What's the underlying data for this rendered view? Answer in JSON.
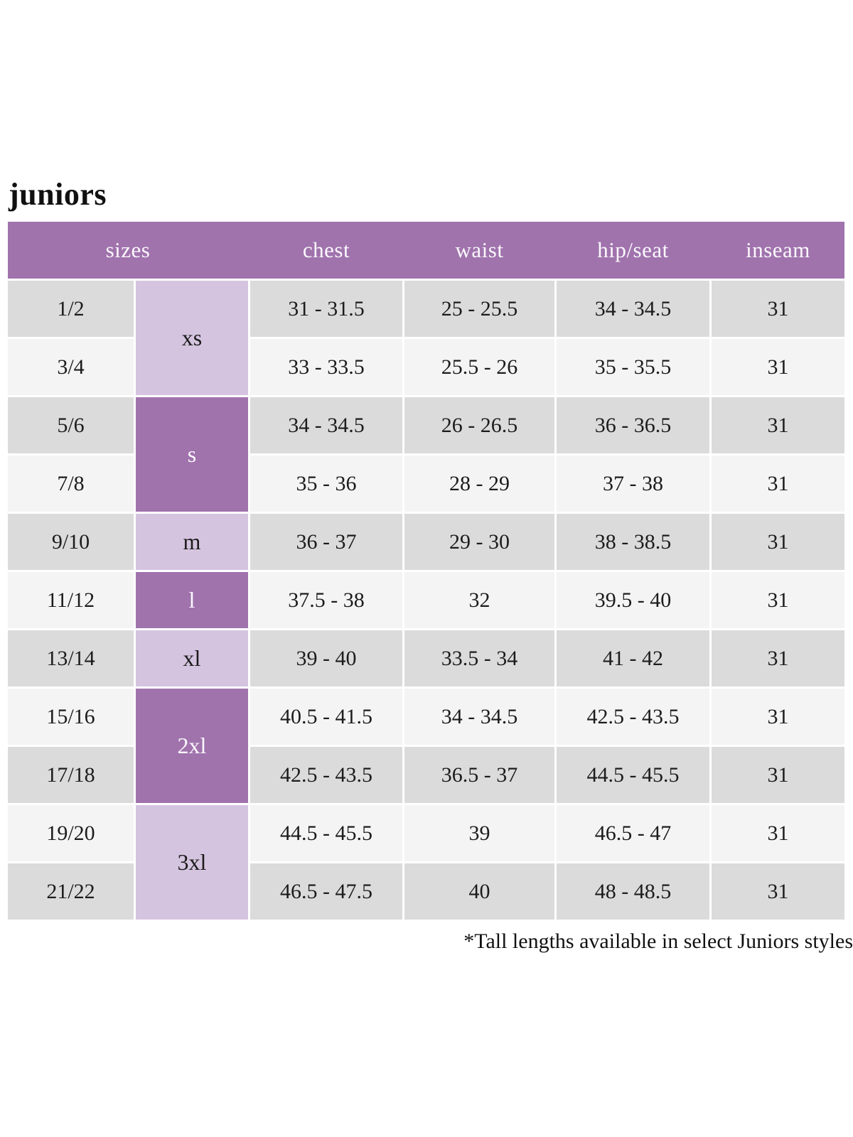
{
  "page": {
    "title": "juniors",
    "footnote": "*Tall lengths available in select Juniors styles"
  },
  "colors": {
    "header_bg": "#a073ad",
    "size_group_light": "#d5c4df",
    "size_group_dark": "#a073ad",
    "row_gray": "#dbdbdb",
    "row_light": "#f4f4f4"
  },
  "table": {
    "headers": {
      "sizes": "sizes",
      "chest": "chest",
      "waist": "waist",
      "hip_seat": "hip/seat",
      "inseam": "inseam"
    },
    "size_groups": [
      {
        "label": "xs",
        "spans_rows": 2,
        "shade": "light"
      },
      {
        "label": "s",
        "spans_rows": 2,
        "shade": "dark"
      },
      {
        "label": "m",
        "spans_rows": 1,
        "shade": "light"
      },
      {
        "label": "l",
        "spans_rows": 1,
        "shade": "dark"
      },
      {
        "label": "xl",
        "spans_rows": 1,
        "shade": "light"
      },
      {
        "label": "2xl",
        "spans_rows": 2,
        "shade": "dark"
      },
      {
        "label": "3xl",
        "spans_rows": 2,
        "shade": "light"
      }
    ],
    "rows": [
      {
        "size": "1/2",
        "chest": "31 - 31.5",
        "waist": "25 - 25.5",
        "hip_seat": "34 - 34.5",
        "inseam": "31"
      },
      {
        "size": "3/4",
        "chest": "33 - 33.5",
        "waist": "25.5 - 26",
        "hip_seat": "35 - 35.5",
        "inseam": "31"
      },
      {
        "size": "5/6",
        "chest": "34 - 34.5",
        "waist": "26 - 26.5",
        "hip_seat": "36 - 36.5",
        "inseam": "31"
      },
      {
        "size": "7/8",
        "chest": "35 - 36",
        "waist": "28 - 29",
        "hip_seat": "37 - 38",
        "inseam": "31"
      },
      {
        "size": "9/10",
        "chest": "36 - 37",
        "waist": "29 - 30",
        "hip_seat": "38 - 38.5",
        "inseam": "31"
      },
      {
        "size": "11/12",
        "chest": "37.5 - 38",
        "waist": "32",
        "hip_seat": "39.5 - 40",
        "inseam": "31"
      },
      {
        "size": "13/14",
        "chest": "39 - 40",
        "waist": "33.5 - 34",
        "hip_seat": "41 - 42",
        "inseam": "31"
      },
      {
        "size": "15/16",
        "chest": "40.5 - 41.5",
        "waist": "34 - 34.5",
        "hip_seat": "42.5 - 43.5",
        "inseam": "31"
      },
      {
        "size": "17/18",
        "chest": "42.5 - 43.5",
        "waist": "36.5 - 37",
        "hip_seat": "44.5 - 45.5",
        "inseam": "31"
      },
      {
        "size": "19/20",
        "chest": "44.5 - 45.5",
        "waist": "39",
        "hip_seat": "46.5 - 47",
        "inseam": "31"
      },
      {
        "size": "21/22",
        "chest": "46.5 - 47.5",
        "waist": "40",
        "hip_seat": "48 - 48.5",
        "inseam": "31"
      }
    ]
  }
}
